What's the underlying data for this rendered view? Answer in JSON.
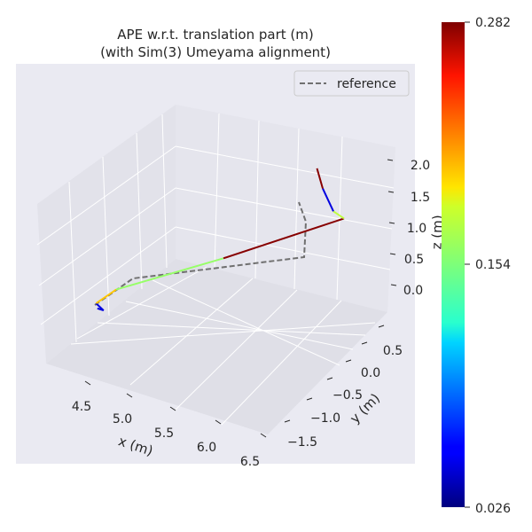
{
  "chart_data": {
    "type": "line",
    "projection": "3d",
    "title_line1": "APE w.r.t. translation part (m)",
    "title_line2": "(with Sim(3) Umeyama alignment)",
    "xlabel": "x (m)",
    "ylabel": "y (m)",
    "zlabel": "z (m)",
    "x_ticks": [
      "4.5",
      "5.0",
      "5.5",
      "6.0",
      "6.5"
    ],
    "y_ticks": [
      "0.5",
      "0.0",
      "−0.5",
      "−1.0",
      "−1.5"
    ],
    "z_ticks": [
      "2.0",
      "1.5",
      "1.0",
      "0.5",
      "0.0"
    ],
    "legend": {
      "position": "top-right",
      "entries": [
        {
          "label": "reference",
          "style": "dashed",
          "color": "#707070"
        }
      ]
    },
    "colorbar": {
      "colormap": "jet",
      "min": 0.026,
      "max": 0.282,
      "ticks": [
        "0.282",
        "0.154",
        "0.026"
      ]
    },
    "reference_path": [
      [
        4.3,
        -0.9,
        0.0
      ],
      [
        4.55,
        -0.85,
        0.2
      ],
      [
        6.5,
        0.4,
        0.5
      ],
      [
        6.55,
        0.45,
        1.3
      ],
      [
        6.45,
        0.4,
        1.9
      ]
    ],
    "estimate_segments": [
      {
        "error": 0.05,
        "points": [
          [
            4.32,
            -0.92,
            -0.05
          ],
          [
            4.38,
            -0.9,
            -0.1
          ],
          [
            4.3,
            -0.88,
            0.02
          ]
        ]
      },
      {
        "error": 0.2,
        "points": [
          [
            4.3,
            -0.88,
            0.02
          ],
          [
            4.5,
            -0.85,
            0.2
          ]
        ]
      },
      {
        "error": 0.16,
        "points": [
          [
            4.5,
            -0.85,
            0.2
          ],
          [
            5.5,
            -0.3,
            0.35
          ]
        ]
      },
      {
        "error": 0.28,
        "points": [
          [
            5.5,
            -0.3,
            0.35
          ],
          [
            6.6,
            0.45,
            0.55
          ]
        ]
      },
      {
        "error": 0.17,
        "points": [
          [
            6.6,
            0.45,
            0.55
          ],
          [
            6.5,
            0.4,
            0.7
          ]
        ]
      },
      {
        "error": 0.05,
        "points": [
          [
            6.5,
            0.4,
            0.7
          ],
          [
            6.4,
            0.35,
            1.1
          ]
        ]
      },
      {
        "error": 0.28,
        "points": [
          [
            6.4,
            0.35,
            1.1
          ],
          [
            6.35,
            0.3,
            1.45
          ]
        ]
      }
    ]
  }
}
